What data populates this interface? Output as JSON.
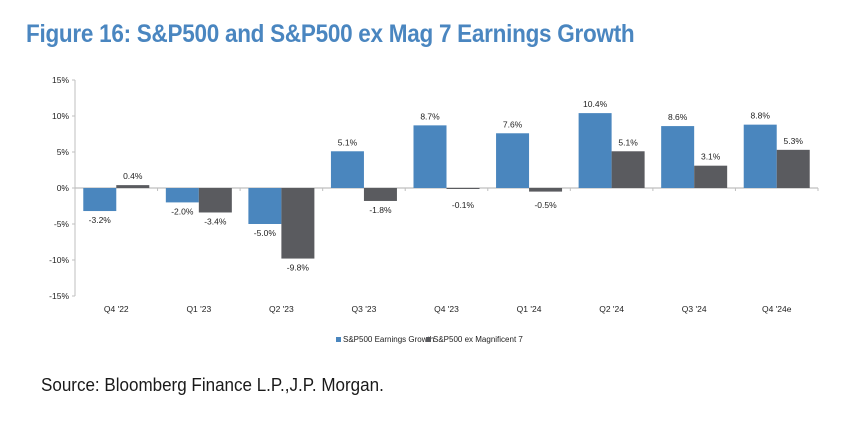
{
  "title": "Figure 16: S&P500 and S&P500 ex Mag 7 Earnings Growth",
  "source": "Source: Bloomberg Finance L.P.,J.P. Morgan.",
  "colors": {
    "title": "#4A86C0",
    "series_blue": "#4A86BE",
    "series_gray": "#5A5B5F",
    "axis": "#BFBFBF"
  },
  "chart_data": {
    "type": "bar",
    "title": "Figure 16: S&P500 and S&P500 ex Mag 7 Earnings Growth",
    "xlabel": "",
    "ylabel": "",
    "categories": [
      "Q4 '22",
      "Q1 '23",
      "Q2 '23",
      "Q3 '23",
      "Q4 '23",
      "Q1 '24",
      "Q2 '24",
      "Q3 '24",
      "Q4 '24e"
    ],
    "series": [
      {
        "name": "S&P500 Earnings Growth",
        "color": "#4A86BE",
        "values": [
          -3.2,
          -2.0,
          -5.0,
          5.1,
          8.7,
          7.6,
          10.4,
          8.6,
          8.8
        ],
        "labels": [
          "-3.2%",
          "-2.0%",
          "-5.0%",
          "5.1%",
          "8.7%",
          "7.6%",
          "10.4%",
          "8.6%",
          "8.8%"
        ]
      },
      {
        "name": "S&P500 ex Magnificent 7",
        "color": "#5A5B5F",
        "values": [
          0.4,
          -3.4,
          -9.8,
          -1.8,
          -0.1,
          -0.5,
          5.1,
          3.1,
          5.3
        ],
        "labels": [
          "0.4%",
          "-3.4%",
          "-9.8%",
          "-1.8%",
          "-0.1%",
          "-0.5%",
          "5.1%",
          "3.1%",
          "5.3%"
        ]
      }
    ],
    "ylim": [
      -15,
      15
    ],
    "yticks": [
      15,
      10,
      5,
      0,
      -5,
      -10,
      -15
    ],
    "ytick_labels": [
      "15%",
      "10%",
      "5%",
      "0%",
      "-5%",
      "-10%",
      "-15%"
    ],
    "grid": false,
    "legend": "bottom-center"
  }
}
